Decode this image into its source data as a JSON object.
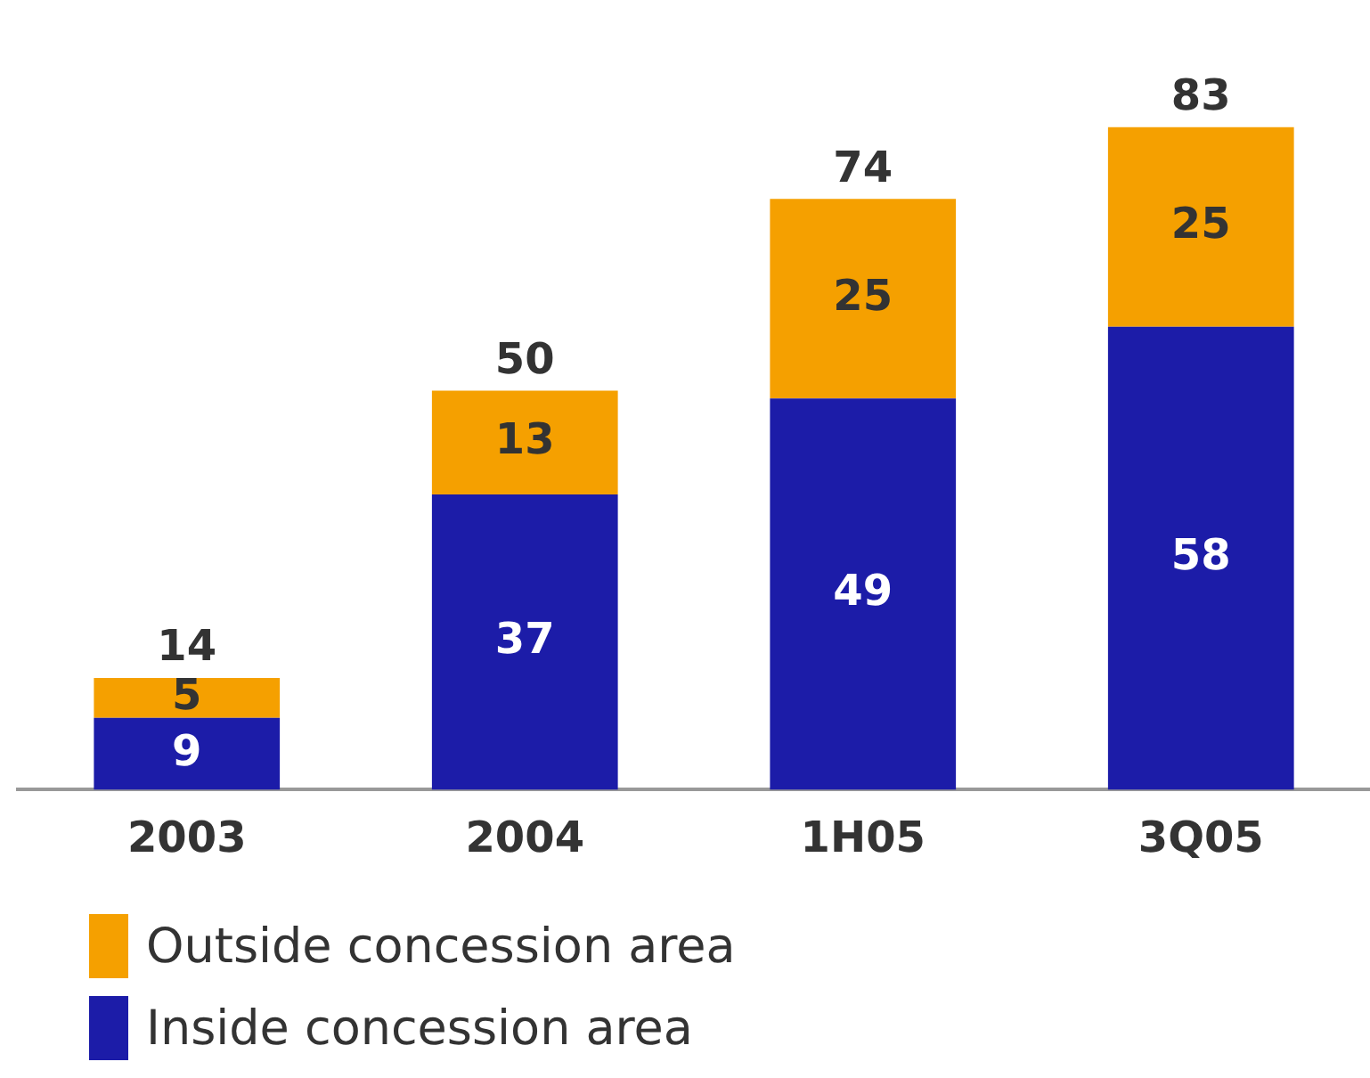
{
  "chart_data": {
    "type": "bar",
    "stacked": true,
    "categories": [
      "2003",
      "2004",
      "1H05",
      "3Q05"
    ],
    "series": [
      {
        "name": "Inside concession area",
        "color": "#1c1ca8",
        "values": [
          9,
          37,
          49,
          58
        ]
      },
      {
        "name": "Outside concession area",
        "color": "#f5a000",
        "values": [
          5,
          13,
          25,
          25
        ]
      }
    ],
    "totals": [
      "14",
      "50",
      "74",
      "83"
    ],
    "data_labels": true,
    "legend": "bottom left",
    "grid": false
  }
}
